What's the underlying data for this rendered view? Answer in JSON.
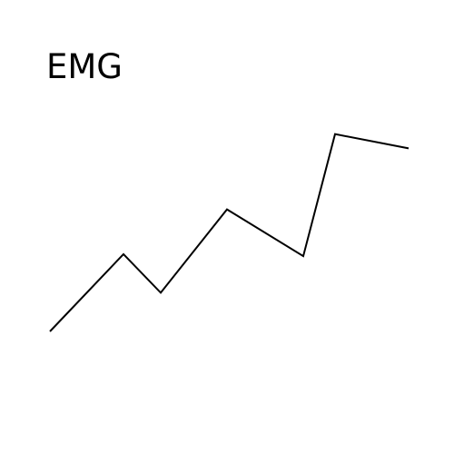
{
  "label": "EMG",
  "line_color": "#000000",
  "chart_data": {
    "type": "line",
    "series": [
      {
        "values": [
          0.0,
          0.38,
          0.19,
          0.6,
          0.37,
          0.97,
          0.9
        ]
      }
    ],
    "x": [
      0,
      1,
      2,
      3,
      4,
      5,
      6
    ],
    "grid": false,
    "legend": "none"
  }
}
